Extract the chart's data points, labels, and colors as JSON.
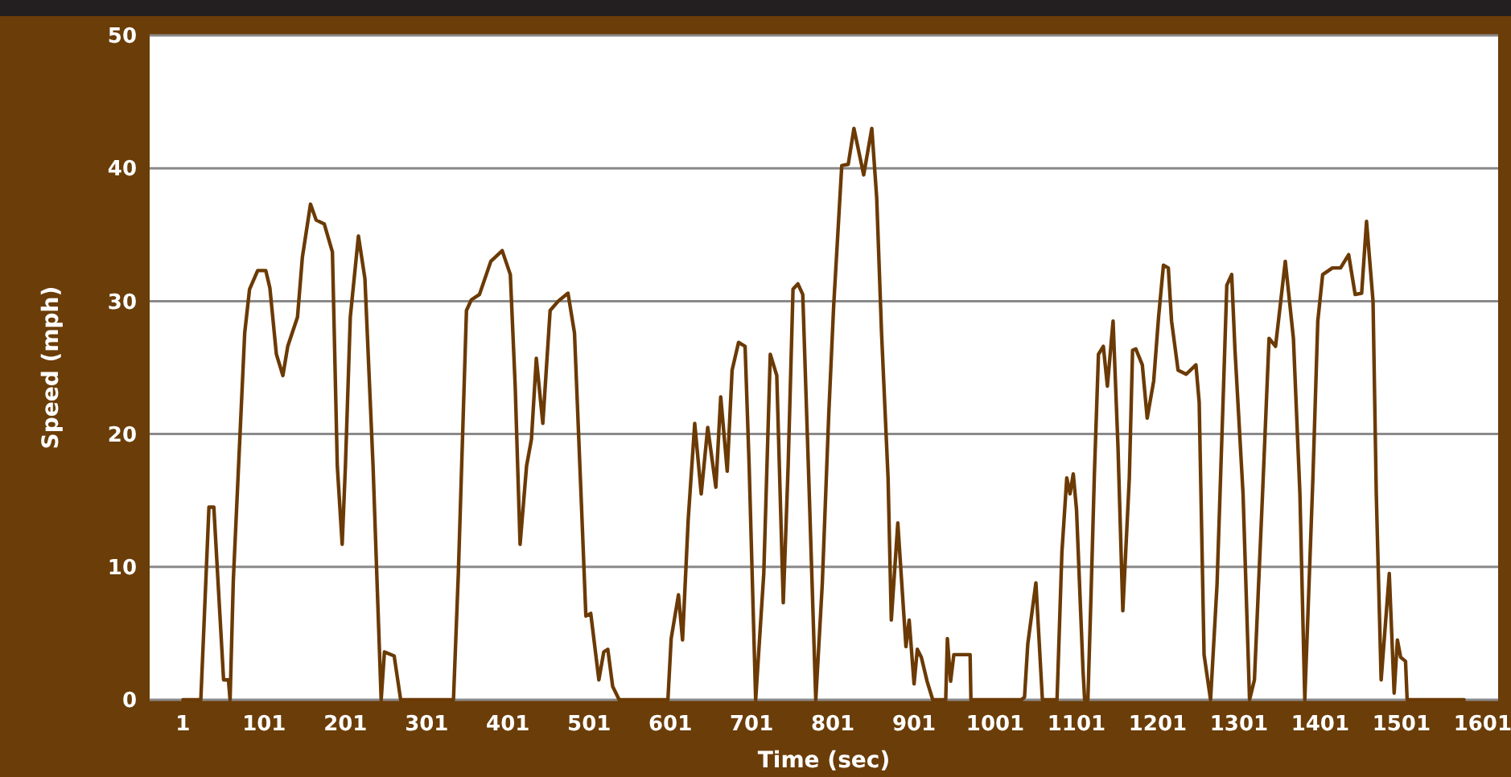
{
  "chart_data": {
    "type": "line",
    "xlabel": "Time (sec)",
    "ylabel": "Speed (mph)",
    "xlim": [
      -40,
      1620
    ],
    "ylim": [
      0,
      50
    ],
    "xticks": [
      1,
      101,
      201,
      301,
      401,
      501,
      601,
      701,
      801,
      901,
      1001,
      1101,
      1201,
      1301,
      1401,
      1501,
      1601
    ],
    "yticks": [
      0,
      10,
      20,
      30,
      40,
      50
    ],
    "grid": "y",
    "marker": "none",
    "line_style": "solid",
    "series": [
      {
        "color": "#6b3a05",
        "x": [
          1,
          23,
          33,
          39,
          51,
          57,
          59,
          63,
          69,
          77,
          83,
          93,
          103,
          108,
          116,
          124,
          130,
          142,
          148,
          158,
          165,
          175,
          185,
          191,
          197,
          201,
          207,
          217,
          225,
          235,
          241,
          245,
          249,
          261,
          269,
          334,
          340,
          350,
          356,
          366,
          380,
          394,
          404,
          410,
          416,
          424,
          430,
          436,
          444,
          453,
          463,
          475,
          483,
          491,
          497,
          503,
          513,
          519,
          524,
          530,
          538,
          598,
          602,
          611,
          616,
          623,
          631,
          639,
          647,
          657,
          663,
          671,
          677,
          685,
          693,
          698,
          706,
          716,
          724,
          732,
          740,
          746,
          752,
          758,
          764,
          772,
          780,
          788,
          796,
          802,
          812,
          820,
          827,
          839,
          849,
          855,
          861,
          869,
          873,
          881,
          891,
          895,
          901,
          905,
          910,
          917,
          924,
          940,
          942,
          946,
          950,
          970,
          971,
          1033,
          1037,
          1041,
          1051,
          1059,
          1077,
          1083,
          1089,
          1093,
          1097,
          1101,
          1109,
          1111,
          1115,
          1119,
          1123,
          1128,
          1134,
          1139,
          1146,
          1152,
          1158,
          1166,
          1170,
          1174,
          1182,
          1188,
          1196,
          1202,
          1208,
          1214,
          1218,
          1226,
          1236,
          1248,
          1252,
          1258,
          1266,
          1274,
          1282,
          1286,
          1292,
          1296,
          1306,
          1314,
          1320,
          1330,
          1338,
          1346,
          1352,
          1358,
          1368,
          1376,
          1382,
          1392,
          1398,
          1404,
          1416,
          1426,
          1436,
          1444,
          1452,
          1458,
          1466,
          1470,
          1476,
          1486,
          1492,
          1496,
          1500,
          1506,
          1508,
          1578
        ],
        "values": [
          0,
          0,
          14.5,
          14.5,
          1.5,
          1.5,
          0,
          9,
          17,
          27.6,
          30.9,
          32.3,
          32.3,
          31,
          26,
          24.4,
          26.6,
          28.8,
          33.3,
          37.3,
          36.1,
          35.8,
          33.7,
          17.6,
          11.7,
          17.6,
          28.8,
          34.9,
          31.7,
          17.6,
          7,
          0,
          3.6,
          3.3,
          0,
          0,
          9.5,
          29.3,
          30.1,
          30.5,
          33,
          33.8,
          32,
          23.6,
          11.7,
          17.6,
          19.6,
          25.7,
          20.8,
          29.3,
          30,
          30.6,
          27.6,
          15.5,
          6.3,
          6.5,
          1.5,
          3.6,
          3.8,
          1,
          0,
          0,
          4.6,
          7.9,
          4.5,
          13.6,
          20.8,
          15.5,
          20.5,
          16,
          22.8,
          17.2,
          24.8,
          26.9,
          26.6,
          17.6,
          0,
          9.5,
          26,
          24.4,
          7.3,
          17.6,
          30.9,
          31.3,
          30.5,
          15.5,
          0,
          8.7,
          21.5,
          29.6,
          40.2,
          40.3,
          43,
          39.5,
          43,
          37.8,
          27.6,
          16.7,
          6,
          13.3,
          4,
          6,
          1.2,
          3.8,
          3.2,
          1.4,
          0,
          0,
          4.6,
          1.4,
          3.4,
          3.4,
          0,
          0,
          0.2,
          4.2,
          8.8,
          0,
          0,
          11.1,
          16.7,
          15.5,
          17,
          14.3,
          2.2,
          0,
          0,
          8.2,
          17,
          26,
          26.6,
          23.6,
          28.5,
          19.1,
          6.7,
          16.7,
          26.3,
          26.4,
          25.2,
          21.2,
          24,
          28.8,
          32.7,
          32.5,
          28.5,
          24.8,
          24.5,
          25.2,
          22.4,
          3.4,
          0,
          8.7,
          23.6,
          31.2,
          32,
          26.4,
          15.5,
          0,
          1.5,
          15.5,
          27.2,
          26.6,
          29.8,
          33,
          27.2,
          15.5,
          0,
          16.7,
          28.5,
          32,
          32.5,
          32.5,
          33.5,
          30.5,
          30.6,
          36,
          30,
          15.5,
          1.5,
          9.5,
          0.5,
          4.5,
          3.2,
          2.9,
          0,
          0
        ]
      }
    ]
  }
}
